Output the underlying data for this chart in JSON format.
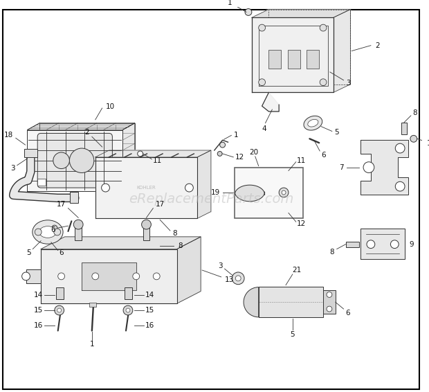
{
  "bg_color": "#ffffff",
  "border_color": "#000000",
  "watermark": "eReplacementParts.com",
  "watermark_color": "#bbbbbb",
  "watermark_fontsize": 14,
  "diagram_color": "#333333",
  "label_fontsize": 7.5,
  "label_color": "#111111"
}
